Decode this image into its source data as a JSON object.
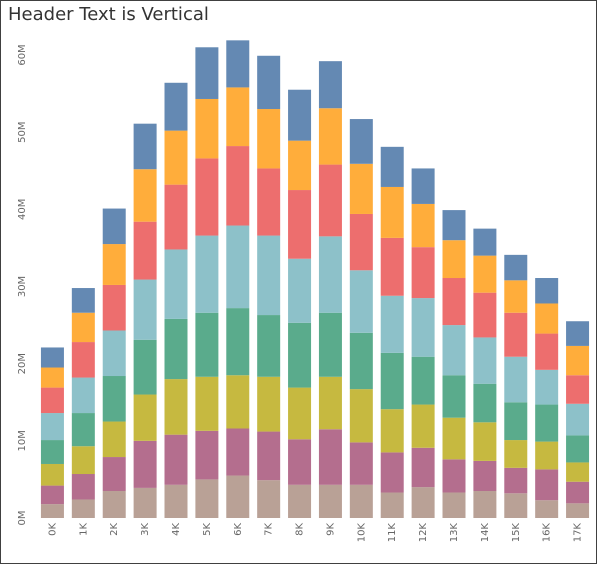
{
  "chart_data": {
    "type": "bar",
    "stacked": true,
    "title": "Header Text is Vertical",
    "xlabel": "",
    "ylabel": "",
    "ylim": [
      0,
      60000000
    ],
    "y_ticks": [
      "0M",
      "10M",
      "20M",
      "30M",
      "40M",
      "50M",
      "60M"
    ],
    "y_tick_values": [
      0,
      10000000,
      20000000,
      30000000,
      40000000,
      50000000,
      60000000
    ],
    "categories": [
      "0K",
      "1K",
      "2K",
      "3K",
      "4K",
      "5K",
      "6K",
      "7K",
      "8K",
      "9K",
      "10K",
      "11K",
      "12K",
      "13K",
      "14K",
      "15K",
      "16K",
      "17K"
    ],
    "legend": "none",
    "grid": false,
    "series": [
      {
        "color": "#b9a196",
        "values": [
          1.8,
          2.4,
          3.5,
          3.9,
          4.3,
          5.0,
          5.5,
          4.9,
          4.3,
          4.3,
          4.3,
          3.3,
          4.0,
          3.3,
          3.5,
          3.2,
          2.3,
          1.9
        ]
      },
      {
        "color": "#b46e8e",
        "values": [
          2.4,
          3.3,
          4.4,
          6.1,
          6.5,
          6.3,
          6.1,
          6.3,
          5.9,
          7.2,
          5.5,
          5.2,
          5.1,
          4.3,
          3.9,
          3.3,
          4.0,
          2.8
        ]
      },
      {
        "color": "#c6b940",
        "values": [
          2.8,
          3.6,
          4.6,
          6.0,
          7.2,
          7.0,
          6.9,
          7.1,
          6.7,
          6.8,
          6.9,
          5.6,
          5.6,
          5.4,
          5.0,
          3.6,
          3.6,
          2.5
        ]
      },
      {
        "color": "#5aab8c",
        "values": [
          3.1,
          4.3,
          5.9,
          7.1,
          7.8,
          8.3,
          8.7,
          8.0,
          8.4,
          8.3,
          7.3,
          7.3,
          6.2,
          5.5,
          5.0,
          4.9,
          4.8,
          3.5
        ]
      },
      {
        "color": "#8dc1c9",
        "values": [
          3.5,
          4.6,
          5.9,
          7.8,
          9.0,
          10.0,
          10.7,
          10.3,
          8.3,
          9.9,
          8.1,
          7.4,
          7.6,
          6.5,
          6.0,
          5.9,
          4.5,
          4.1
        ]
      },
      {
        "color": "#ed6e6e",
        "values": [
          3.3,
          4.6,
          5.9,
          7.5,
          8.4,
          10.0,
          10.3,
          8.7,
          8.9,
          9.3,
          7.3,
          7.5,
          6.6,
          6.1,
          5.8,
          5.7,
          4.7,
          3.7
        ]
      },
      {
        "color": "#ffad3b",
        "values": [
          2.6,
          3.8,
          5.3,
          6.8,
          7.0,
          7.7,
          7.6,
          7.7,
          6.4,
          7.3,
          6.5,
          6.6,
          5.6,
          4.9,
          4.8,
          4.2,
          3.9,
          3.8
        ]
      },
      {
        "color": "#6489b3",
        "values": [
          2.6,
          3.2,
          4.6,
          5.9,
          6.2,
          6.7,
          6.1,
          6.9,
          6.6,
          6.1,
          5.8,
          5.2,
          4.6,
          3.9,
          3.5,
          3.3,
          3.3,
          3.2
        ]
      }
    ],
    "value_unit": "M"
  }
}
